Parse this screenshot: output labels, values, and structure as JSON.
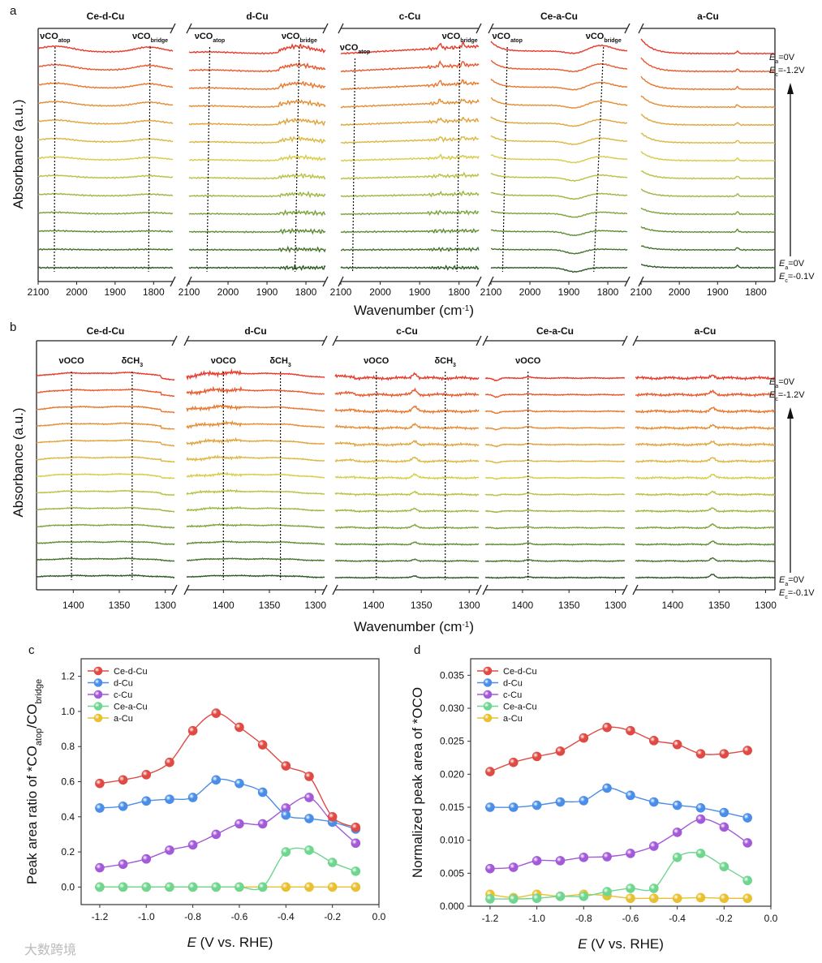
{
  "panel_letters": {
    "a": "a",
    "b": "b",
    "c": "c",
    "d": "d"
  },
  "watermark": "大数跨境",
  "colors": {
    "Ce-d-Cu": "#e04a44",
    "d-Cu": "#4a8ee8",
    "c-Cu": "#a35ad8",
    "Ce-a-Cu": "#6fd68f",
    "a-Cu": "#e8c030",
    "trace_stops": [
      "#e8392a",
      "#e8782e",
      "#e0a43c",
      "#d8cc48",
      "#9cb840",
      "#5d8e34",
      "#2c5a24"
    ]
  },
  "chart_data": [
    {
      "id": "a",
      "type": "line",
      "subtype": "stacked-spectra",
      "xlabel": "Wavenumber (cm",
      "xlabel_sup": "-1",
      "xlabel_end": ")",
      "ylabel": "Absorbance (a.u.)",
      "xlim": [
        2100,
        1750
      ],
      "xticks": [
        "2100",
        "2000",
        "1900",
        "1800"
      ],
      "tick_values": [
        2100,
        2000,
        1900,
        1800
      ],
      "trace_count": 13,
      "potential_top": {
        "ea": "=0V",
        "ec": "=-1.2V"
      },
      "potential_bottom": {
        "ea": "=0V",
        "ec": "=-0.1V"
      },
      "E_label": "E",
      "a_sub": "a",
      "c_sub": "c",
      "panels": [
        {
          "title": "Ce-d-Cu",
          "annotations": [
            {
              "label": "νCO",
              "sub": "atop",
              "w_top": 2056,
              "w_bot": 2058
            },
            {
              "label": "νCO",
              "sub": "bridge",
              "w_top": 1809,
              "w_bot": 1813
            }
          ]
        },
        {
          "title": "d-Cu",
          "annotations": [
            {
              "label": "νCO",
              "sub": "atop",
              "w_top": 2047,
              "w_bot": 2054
            },
            {
              "label": "νCO",
              "sub": "bridge",
              "w_top": 1817,
              "w_bot": 1828
            }
          ]
        },
        {
          "title": "c-Cu",
          "annotations": [
            {
              "label": "νCO",
              "sub": "atop",
              "w_top": 2064,
              "w_bot": 2070
            },
            {
              "label": "νCO",
              "sub": "bridge",
              "w_top": 1798,
              "w_bot": 1805
            }
          ]
        },
        {
          "title": "Ce-a-Cu",
          "annotations": [
            {
              "label": "νCO",
              "sub": "atop",
              "w_top": 2058,
              "w_bot": 2070
            },
            {
              "label": "νCO",
              "sub": "bridge",
              "w_top": 1811,
              "w_bot": 1836
            }
          ]
        },
        {
          "title": "a-Cu",
          "annotations": []
        }
      ]
    },
    {
      "id": "b",
      "type": "line",
      "subtype": "stacked-spectra",
      "xlabel": "Wavenumber (cm",
      "xlabel_sup": "-1",
      "xlabel_end": ")",
      "ylabel": "Absorbance (a.u.)",
      "xlim": [
        1440,
        1290
      ],
      "xticks": [
        "1400",
        "1350",
        "1300"
      ],
      "tick_values": [
        1400,
        1350,
        1300
      ],
      "trace_count": 13,
      "potential_top": {
        "ea": "=0V",
        "ec": "=-1.2V"
      },
      "potential_bottom": {
        "ea": "=0V",
        "ec": "=-0.1V"
      },
      "E_label": "E",
      "a_sub": "a",
      "c_sub": "c",
      "panels": [
        {
          "title": "Ce-d-Cu",
          "annotations": [
            {
              "label": "νOCO",
              "sub": "",
              "w_top": 1402,
              "w_bot": 1402
            },
            {
              "label": "δCH",
              "sub": "3",
              "w_top": 1336,
              "w_bot": 1336
            }
          ]
        },
        {
          "title": "d-Cu",
          "annotations": [
            {
              "label": "νOCO",
              "sub": "",
              "w_top": 1400,
              "w_bot": 1400
            },
            {
              "label": "δCH",
              "sub": "3",
              "w_top": 1338,
              "w_bot": 1338
            }
          ]
        },
        {
          "title": "c-Cu",
          "annotations": [
            {
              "label": "νOCO",
              "sub": "",
              "w_top": 1397,
              "w_bot": 1397
            },
            {
              "label": "δCH",
              "sub": "3",
              "w_top": 1325,
              "w_bot": 1325
            }
          ]
        },
        {
          "title": "Ce-a-Cu",
          "annotations": [
            {
              "label": "νOCO",
              "sub": "",
              "w_top": 1394,
              "w_bot": 1394
            }
          ]
        },
        {
          "title": "a-Cu",
          "annotations": []
        }
      ]
    },
    {
      "id": "c",
      "type": "line",
      "xlabel": "E",
      "xlabel_rest": " (V vs. RHE)",
      "ylabel": "Peak area ratio of *CO",
      "ylabel_sub1": "atop",
      "ylabel_mid": "/CO",
      "ylabel_sub2": "bridge",
      "xlim": [
        -1.28,
        0.0
      ],
      "ylim": [
        -0.1,
        1.3
      ],
      "xticks": [
        -1.2,
        -1.0,
        -0.8,
        -0.6,
        -0.4,
        -0.2,
        0.0
      ],
      "xtick_labels": [
        "-1.2",
        "-1.0",
        "-0.8",
        "-0.6",
        "-0.4",
        "-0.2",
        "0.0"
      ],
      "yticks": [
        0.0,
        0.2,
        0.4,
        0.6,
        0.8,
        1.0,
        1.2
      ],
      "ytick_labels": [
        "0.0",
        "0.2",
        "0.4",
        "0.6",
        "0.8",
        "1.0",
        "1.2"
      ],
      "legend": "top-left",
      "x": [
        -1.2,
        -1.1,
        -1.0,
        -0.9,
        -0.8,
        -0.7,
        -0.6,
        -0.5,
        -0.4,
        -0.3,
        -0.2,
        -0.1
      ],
      "series": [
        {
          "name": "Ce-d-Cu",
          "values": [
            0.59,
            0.61,
            0.64,
            0.71,
            0.89,
            0.99,
            0.91,
            0.81,
            0.69,
            0.63,
            0.4,
            0.34
          ]
        },
        {
          "name": "d-Cu",
          "values": [
            0.45,
            0.46,
            0.49,
            0.5,
            0.51,
            0.61,
            0.59,
            0.54,
            0.41,
            0.39,
            0.37,
            0.33
          ]
        },
        {
          "name": "c-Cu",
          "values": [
            0.11,
            0.13,
            0.16,
            0.21,
            0.24,
            0.3,
            0.36,
            0.36,
            0.45,
            0.51,
            0.37,
            0.25
          ]
        },
        {
          "name": "Ce-a-Cu",
          "values": [
            0.0,
            0.0,
            0.0,
            0.0,
            0.0,
            0.0,
            0.0,
            0.0,
            0.2,
            0.21,
            0.14,
            0.09
          ]
        },
        {
          "name": "a-Cu",
          "values": [
            0.0,
            0.0,
            0.0,
            0.0,
            0.0,
            0.0,
            0.0,
            0.0,
            0.0,
            0.0,
            0.0,
            0.0
          ]
        }
      ]
    },
    {
      "id": "d",
      "type": "line",
      "xlabel": "E",
      "xlabel_rest": " (V vs. RHE)",
      "ylabel": "Normalized peak area of *OCO",
      "xlim": [
        -1.283,
        0.0
      ],
      "ylim": [
        0.0,
        0.0375
      ],
      "xticks": [
        -1.2,
        -1.0,
        -0.8,
        -0.6,
        -0.4,
        -0.2,
        0.0
      ],
      "xtick_labels": [
        "-1.2",
        "-1.0",
        "-0.8",
        "-0.6",
        "-0.4",
        "-0.2",
        "0.0"
      ],
      "yticks": [
        0.0,
        0.005,
        0.01,
        0.015,
        0.02,
        0.025,
        0.03,
        0.035
      ],
      "ytick_labels": [
        "0.000",
        "0.005",
        "0.010",
        "0.015",
        "0.020",
        "0.025",
        "0.030",
        "0.035"
      ],
      "legend": "top-left",
      "x": [
        -1.2,
        -1.1,
        -1.0,
        -0.9,
        -0.8,
        -0.7,
        -0.6,
        -0.5,
        -0.4,
        -0.3,
        -0.2,
        -0.1
      ],
      "series": [
        {
          "name": "Ce-d-Cu",
          "values": [
            0.0204,
            0.0218,
            0.0227,
            0.0235,
            0.0255,
            0.0271,
            0.0266,
            0.0251,
            0.0245,
            0.0231,
            0.0231,
            0.0236
          ]
        },
        {
          "name": "d-Cu",
          "values": [
            0.015,
            0.015,
            0.0153,
            0.0158,
            0.016,
            0.0179,
            0.0168,
            0.0158,
            0.0153,
            0.0149,
            0.0142,
            0.0134
          ]
        },
        {
          "name": "c-Cu",
          "values": [
            0.0057,
            0.0059,
            0.0069,
            0.0069,
            0.0074,
            0.0075,
            0.008,
            0.0091,
            0.0112,
            0.0132,
            0.012,
            0.0096
          ]
        },
        {
          "name": "Ce-a-Cu",
          "values": [
            0.0011,
            0.0011,
            0.0012,
            0.0015,
            0.0015,
            0.0022,
            0.0027,
            0.0027,
            0.0074,
            0.008,
            0.006,
            0.0039
          ]
        },
        {
          "name": "a-Cu",
          "values": [
            0.0018,
            0.0013,
            0.0018,
            0.0015,
            0.0018,
            0.0016,
            0.0012,
            0.0012,
            0.0012,
            0.0013,
            0.0012,
            0.0012
          ]
        }
      ]
    }
  ]
}
